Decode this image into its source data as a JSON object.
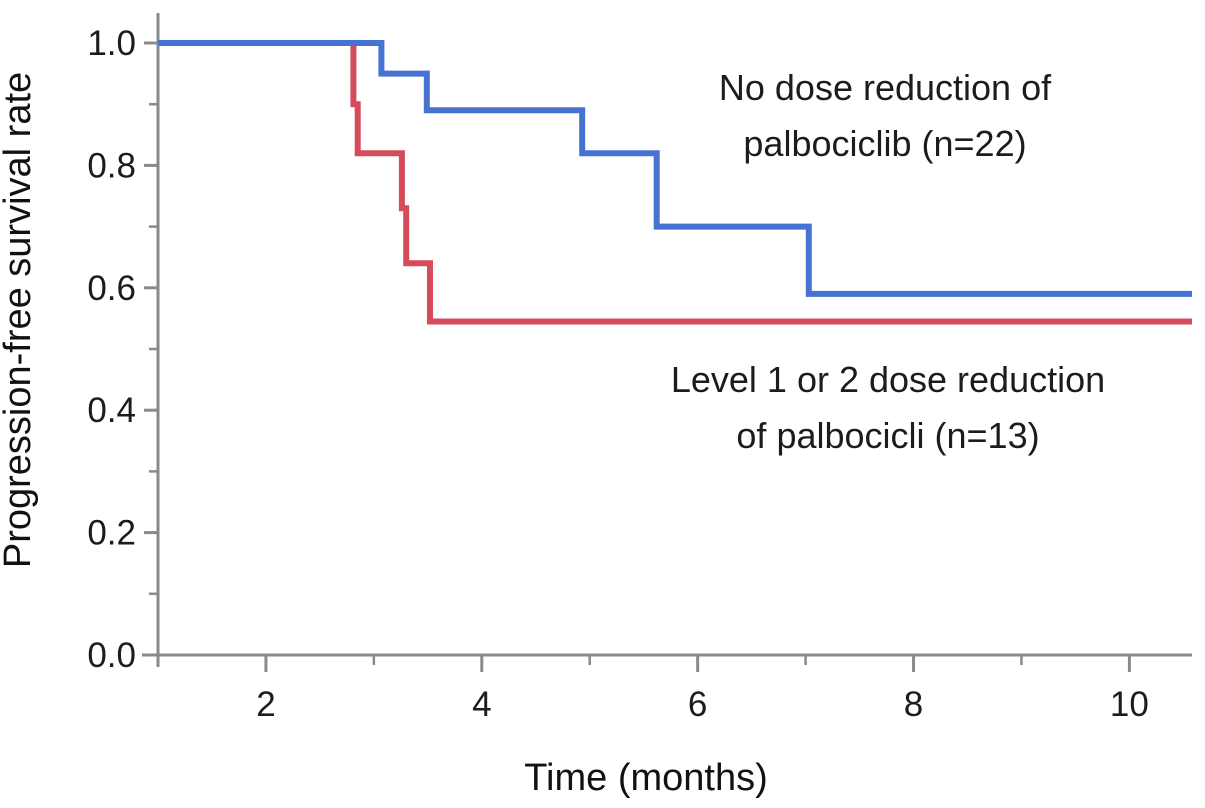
{
  "figure": {
    "background": "#ffffff",
    "axis_color": "#8a8a8a",
    "text_color": "#1c1c1c"
  },
  "chart_data": {
    "type": "line",
    "subtype": "kaplan-meier-step",
    "title": "",
    "xlabel": "Time (months)",
    "ylabel": "Progression-free survival rate",
    "xlim": [
      1,
      10.58
    ],
    "ylim": [
      0,
      1.0
    ],
    "grid": false,
    "legend_position": "inline-annotations",
    "x_major_ticks": [
      2,
      4,
      6,
      8,
      10
    ],
    "x_tick_labels": [
      "2",
      "4",
      "6",
      "8",
      "10"
    ],
    "x_minor_ticks": [
      3,
      5,
      7,
      9
    ],
    "y_major_ticks": [
      0.0,
      0.2,
      0.4,
      0.6,
      0.8,
      1.0
    ],
    "y_tick_labels": [
      "0.0",
      "0.2",
      "0.4",
      "0.6",
      "0.8",
      "1.0"
    ],
    "y_minor_ticks": [
      0.1,
      0.3,
      0.5,
      0.7,
      0.9
    ],
    "series": [
      {
        "name": "No dose reduction of palbociclib (n=22)",
        "color": "#4673D1",
        "points": [
          [
            1.0,
            1.0
          ],
          [
            3.07,
            1.0
          ],
          [
            3.07,
            0.95
          ],
          [
            3.49,
            0.95
          ],
          [
            3.49,
            0.89
          ],
          [
            4.93,
            0.89
          ],
          [
            4.93,
            0.82
          ],
          [
            5.62,
            0.82
          ],
          [
            5.62,
            0.7
          ],
          [
            7.03,
            0.7
          ],
          [
            7.03,
            0.59
          ],
          [
            10.58,
            0.59
          ]
        ]
      },
      {
        "name": "Level 1 or 2 dose reduction of palbocicli (n=13)",
        "color": "#D64B5C",
        "points": [
          [
            1.0,
            1.0
          ],
          [
            2.81,
            1.0
          ],
          [
            2.81,
            0.9
          ],
          [
            2.85,
            0.9
          ],
          [
            2.85,
            0.82
          ],
          [
            3.26,
            0.82
          ],
          [
            3.26,
            0.73
          ],
          [
            3.3,
            0.73
          ],
          [
            3.3,
            0.64
          ],
          [
            3.52,
            0.64
          ],
          [
            3.52,
            0.545
          ],
          [
            10.58,
            0.545
          ]
        ]
      }
    ],
    "annotations": [
      {
        "line1": "No dose reduction of",
        "line2": "palbociclib (n=22)"
      },
      {
        "line1": "Level 1 or 2 dose reduction",
        "line2": "of palbocicli (n=13)"
      }
    ]
  }
}
